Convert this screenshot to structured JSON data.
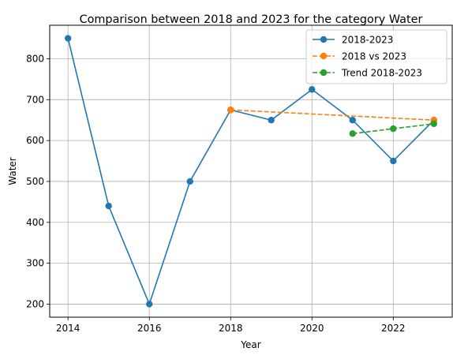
{
  "chart_data": {
    "type": "line",
    "title": "Comparison between 2018 and 2023 for the category Water",
    "xlabel": "Year",
    "ylabel": "Water",
    "xlim": [
      2013.55,
      2023.45
    ],
    "ylim": [
      168,
      882
    ],
    "xticks": [
      2014,
      2016,
      2018,
      2020,
      2022
    ],
    "yticks": [
      200,
      300,
      400,
      500,
      600,
      700,
      800
    ],
    "grid": true,
    "legend_position": "top-right",
    "series": [
      {
        "name": "2018-2023",
        "color": "#1f77b4",
        "style": "solid",
        "x": [
          2014,
          2015,
          2016,
          2017,
          2018,
          2019,
          2020,
          2021,
          2022,
          2023
        ],
        "y": [
          850,
          440,
          200,
          500,
          675,
          650,
          725,
          650,
          550,
          650
        ]
      },
      {
        "name": "2018 vs 2023",
        "color": "#ff7f0e",
        "style": "dashed",
        "x": [
          2018,
          2023
        ],
        "y": [
          675,
          650
        ]
      },
      {
        "name": "Trend 2018-2023",
        "color": "#2ca02c",
        "style": "dashed",
        "x": [
          2021,
          2022,
          2023
        ],
        "y": [
          617,
          629,
          641
        ]
      }
    ]
  }
}
